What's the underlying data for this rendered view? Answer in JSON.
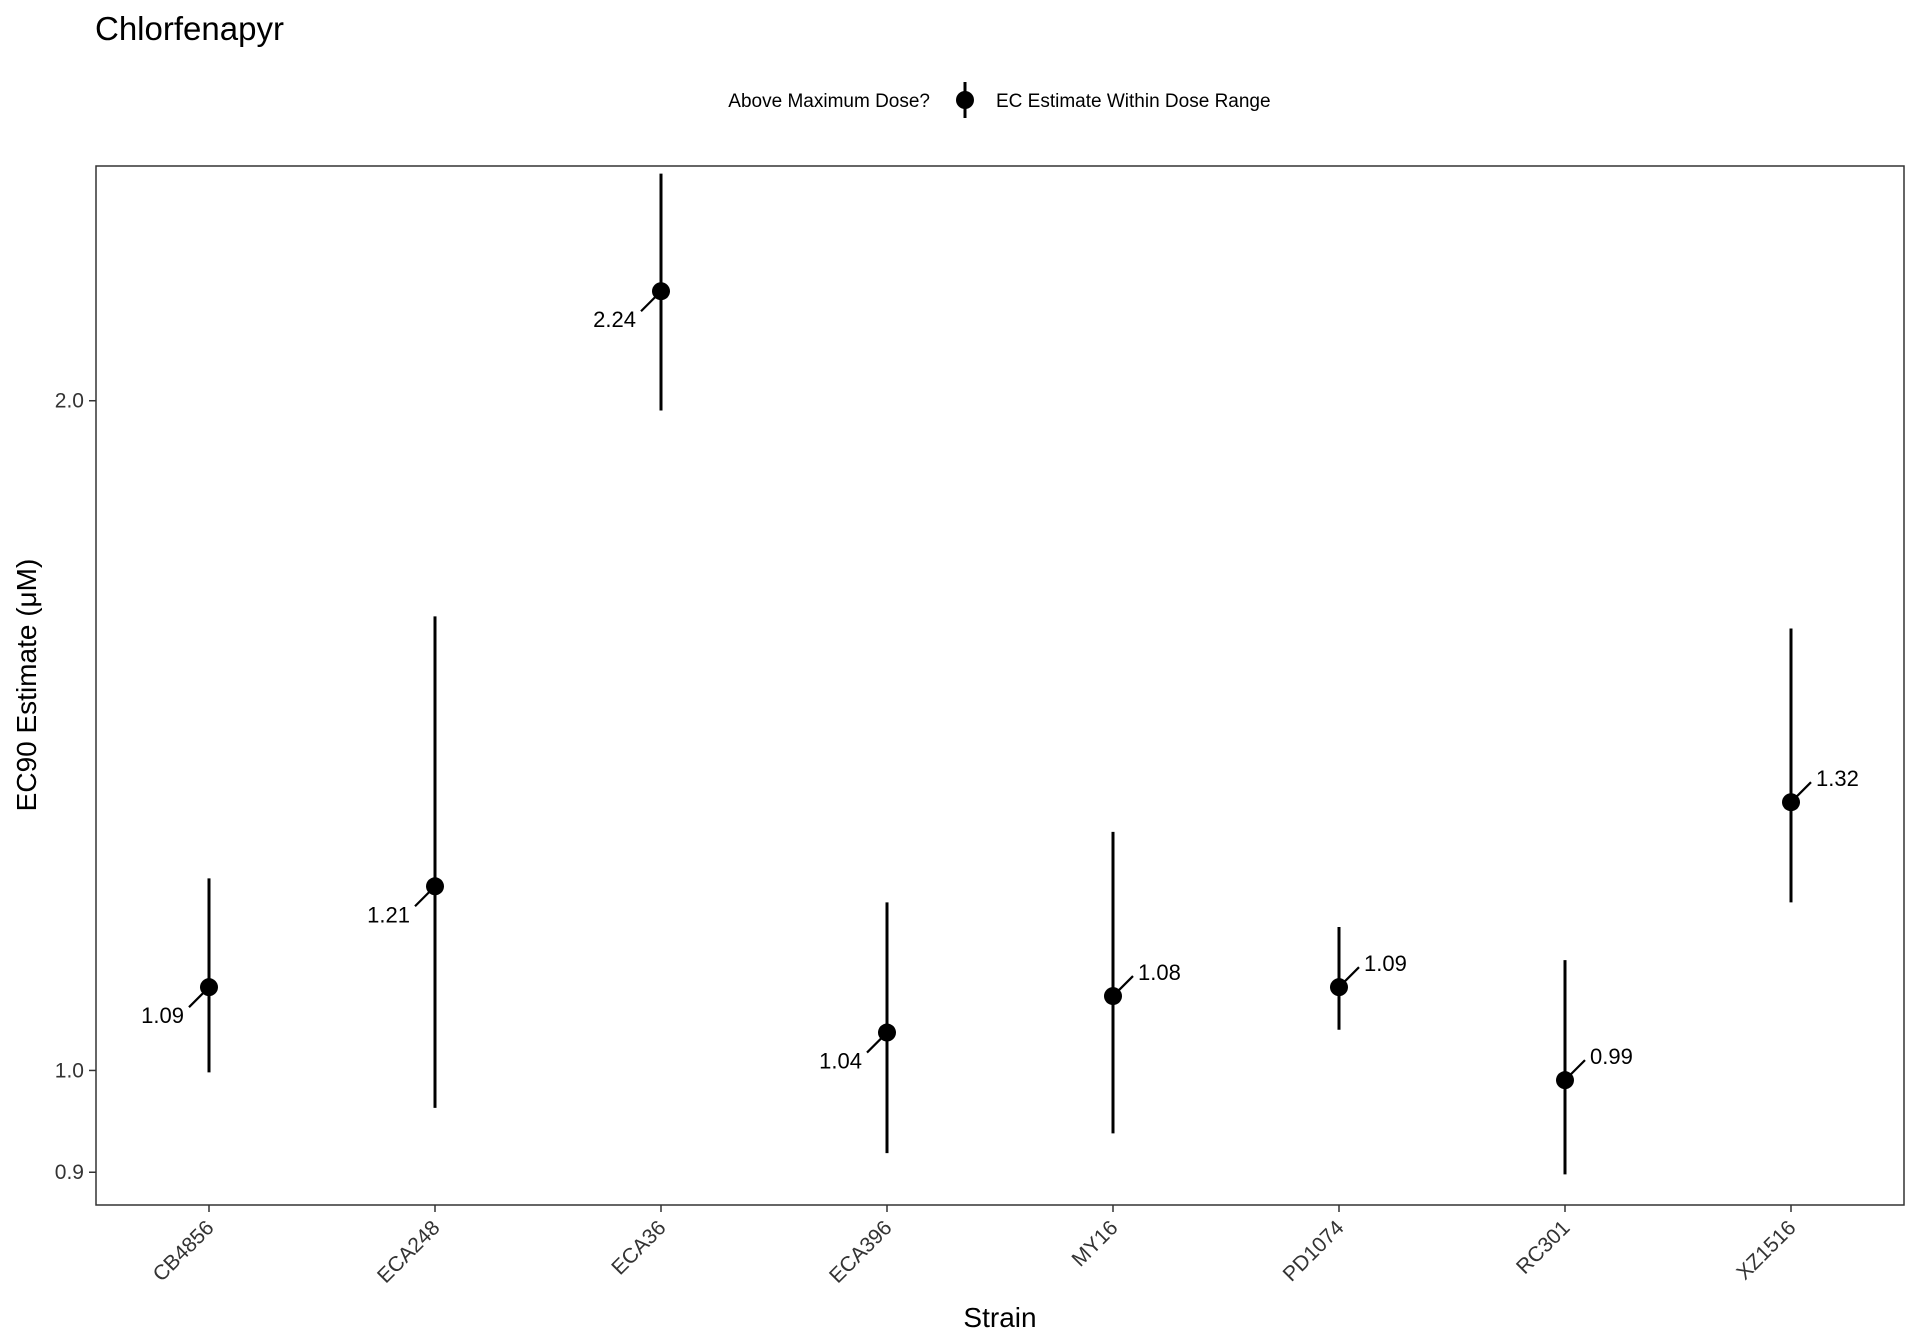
{
  "chart_data": {
    "type": "scatter",
    "title": "Chlorfenapyr",
    "xlabel": "Strain",
    "ylabel": "EC90 Estimate (μM)",
    "y_scale": "log",
    "ylim": [
      0.87,
      2.55
    ],
    "yticks": [
      {
        "value": 0.9,
        "label": "0.9"
      },
      {
        "value": 1.0,
        "label": "1.0"
      },
      {
        "value": 2.0,
        "label": "2.0"
      }
    ],
    "legend": {
      "title": "Above Maximum Dose?",
      "placement": "top",
      "entries": [
        "EC Estimate Within Dose Range"
      ]
    },
    "grid": false,
    "categories": [
      "CB4856",
      "ECA248",
      "ECA36",
      "ECA396",
      "MY16",
      "PD1074",
      "RC301",
      "XZ1516"
    ],
    "series": [
      {
        "values": [
          1.09,
          1.21,
          2.24,
          1.04,
          1.08,
          1.09,
          0.99,
          1.32
        ],
        "lower": [
          0.998,
          0.962,
          1.98,
          0.918,
          0.937,
          1.043,
          0.898,
          1.19
        ],
        "upper": [
          1.22,
          1.6,
          2.53,
          1.19,
          1.28,
          1.16,
          1.121,
          1.58
        ],
        "labels": [
          "1.09",
          "1.21",
          "2.24",
          "1.04",
          "1.08",
          "1.09",
          "0.99",
          "1.32"
        ],
        "label_side": [
          "left",
          "left",
          "left",
          "left",
          "right",
          "right",
          "right",
          "right"
        ]
      }
    ],
    "colors": {
      "points": "#000000",
      "panel_border": "#333333",
      "tick": "#333333"
    }
  }
}
